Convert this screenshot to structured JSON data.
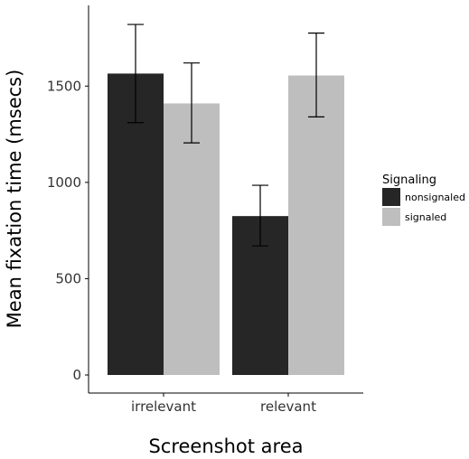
{
  "chart_data": {
    "type": "bar",
    "xlabel": "Screenshot area",
    "ylabel": "Mean fixation time (msecs)",
    "categories": [
      "irrelevant",
      "relevant"
    ],
    "ylim": [
      0,
      1850
    ],
    "yticks": [
      0,
      500,
      1000,
      1500
    ],
    "grid": false,
    "legend": {
      "title": "Signaling",
      "placement": "right"
    },
    "series": [
      {
        "name": "nonsignaled",
        "color": "#262626",
        "values": [
          1565,
          825
        ],
        "error_low": [
          1310,
          670
        ],
        "error_high": [
          1820,
          985
        ]
      },
      {
        "name": "signaled",
        "color": "#bebebe",
        "values": [
          1410,
          1555
        ],
        "error_low": [
          1205,
          1340
        ],
        "error_high": [
          1620,
          1775
        ]
      }
    ]
  }
}
